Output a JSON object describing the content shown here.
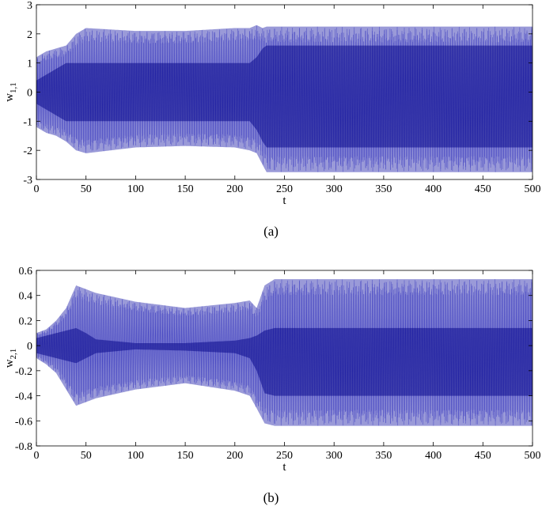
{
  "figure": {
    "captions": [
      "(a)",
      "(b)"
    ],
    "colors": {
      "signal_light": "#9a9ad8",
      "signal_mid": "#3b3bbf",
      "signal_dark": "#0a0a8c",
      "axis": "#000000"
    }
  },
  "chart_data": [
    {
      "type": "line",
      "xlabel": "t",
      "ylabel_main": "w",
      "ylabel_sub": "1,1",
      "xlim": [
        0,
        500
      ],
      "ylim": [
        -3,
        3
      ],
      "xticks": [
        0,
        50,
        100,
        150,
        200,
        250,
        300,
        350,
        400,
        450,
        500
      ],
      "yticks": [
        -3,
        -2,
        -1,
        0,
        1,
        2,
        3
      ],
      "grid": false,
      "series": [
        {
          "envelope_t": [
            0,
            10,
            20,
            30,
            40,
            50,
            100,
            150,
            200,
            215,
            222,
            228,
            232,
            500
          ],
          "envelope_upper": [
            1.2,
            1.4,
            1.5,
            1.6,
            2.0,
            2.2,
            2.1,
            2.1,
            2.2,
            2.2,
            2.3,
            2.2,
            2.25,
            2.25
          ],
          "envelope_lower": [
            -1.2,
            -1.4,
            -1.5,
            -1.7,
            -2.0,
            -2.1,
            -1.9,
            -1.85,
            -1.9,
            -2.0,
            -2.1,
            -2.5,
            -2.75,
            -2.75
          ],
          "core_upper": [
            0.4,
            0.6,
            0.8,
            1.0,
            1.0,
            1.0,
            1.0,
            1.0,
            1.0,
            1.0,
            1.2,
            1.5,
            1.6,
            1.6
          ],
          "core_lower": [
            -0.4,
            -0.6,
            -0.8,
            -1.0,
            -1.0,
            -1.0,
            -1.0,
            -1.0,
            -1.0,
            -1.0,
            -1.3,
            -1.7,
            -1.9,
            -1.9
          ]
        }
      ]
    },
    {
      "type": "line",
      "xlabel": "t",
      "ylabel_main": "w",
      "ylabel_sub": "2,1",
      "xlim": [
        0,
        500
      ],
      "ylim": [
        -0.8,
        0.6
      ],
      "xticks": [
        0,
        50,
        100,
        150,
        200,
        250,
        300,
        350,
        400,
        450,
        500
      ],
      "yticks": [
        -0.8,
        -0.6,
        -0.4,
        -0.2,
        0,
        0.2,
        0.4,
        0.6
      ],
      "grid": false,
      "series": [
        {
          "envelope_t": [
            0,
            10,
            20,
            30,
            40,
            50,
            60,
            100,
            150,
            200,
            215,
            222,
            230,
            240,
            500
          ],
          "envelope_upper": [
            0.1,
            0.13,
            0.2,
            0.3,
            0.48,
            0.45,
            0.42,
            0.35,
            0.3,
            0.34,
            0.36,
            0.3,
            0.48,
            0.53,
            0.53
          ],
          "envelope_lower": [
            -0.1,
            -0.15,
            -0.22,
            -0.35,
            -0.48,
            -0.45,
            -0.42,
            -0.35,
            -0.3,
            -0.36,
            -0.4,
            -0.5,
            -0.62,
            -0.64,
            -0.64
          ],
          "core_upper": [
            0.06,
            0.08,
            0.1,
            0.12,
            0.14,
            0.1,
            0.05,
            0.02,
            0.02,
            0.04,
            0.06,
            0.08,
            0.12,
            0.14,
            0.14
          ],
          "core_lower": [
            -0.06,
            -0.08,
            -0.1,
            -0.12,
            -0.14,
            -0.1,
            -0.06,
            -0.03,
            -0.04,
            -0.06,
            -0.1,
            -0.2,
            -0.38,
            -0.4,
            -0.4
          ]
        }
      ]
    }
  ]
}
